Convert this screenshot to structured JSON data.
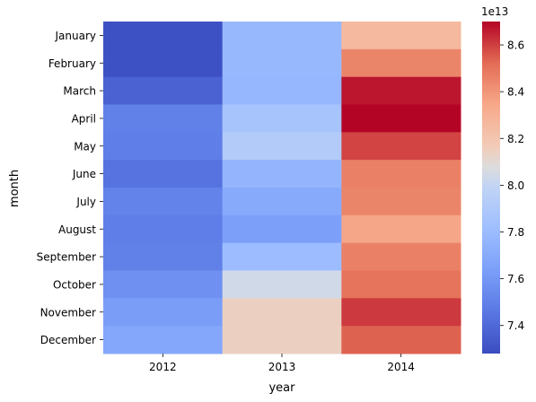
{
  "chart_data": {
    "type": "heatmap",
    "xlabel": "year",
    "ylabel": "month",
    "x": [
      "2012",
      "2013",
      "2014"
    ],
    "y": [
      "January",
      "February",
      "March",
      "April",
      "May",
      "June",
      "July",
      "August",
      "September",
      "October",
      "November",
      "December"
    ],
    "values": [
      [
        7.3,
        7.78,
        8.26
      ],
      [
        7.3,
        7.78,
        8.45
      ],
      [
        7.37,
        7.77,
        8.67
      ],
      [
        7.5,
        7.86,
        8.7
      ],
      [
        7.49,
        7.92,
        8.59
      ],
      [
        7.44,
        7.76,
        8.46
      ],
      [
        7.51,
        7.7,
        8.45
      ],
      [
        7.49,
        7.64,
        8.35
      ],
      [
        7.5,
        7.8,
        8.46
      ],
      [
        7.57,
        8.04,
        8.5
      ],
      [
        7.63,
        8.14,
        8.61
      ],
      [
        7.68,
        8.14,
        8.54
      ]
    ],
    "colorbar": {
      "colormap": "coolwarm",
      "range": [
        7.28,
        8.7
      ],
      "ticks": [
        "7.4",
        "7.6",
        "7.8",
        "8.0",
        "8.2",
        "8.4",
        "8.6"
      ],
      "tick_values": [
        7.4,
        7.6,
        7.8,
        8.0,
        8.2,
        8.4,
        8.6
      ],
      "multiplier": "1e13"
    }
  }
}
